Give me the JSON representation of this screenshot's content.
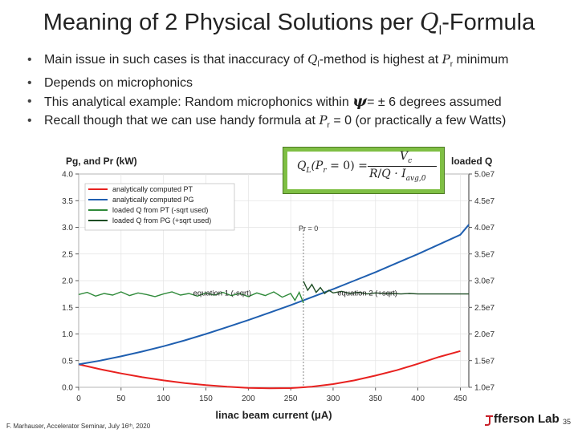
{
  "slide": {
    "title_pre": "Meaning of 2 Physical Solutions per ",
    "title_q": "Q",
    "title_sub": "l",
    "title_post": "-Formula",
    "bullets": {
      "b1_pre": "Main issue in such cases is that inaccuracy of ",
      "b1_q": "Q",
      "b1_sub": "l",
      "b1_mid": "-method is highest at ",
      "b1_p": "P",
      "b1_psub": "r",
      "b1_post": " minimum",
      "b2": "Depends on microphonics",
      "b3_pre": "This analytical example: Random microphonics within ",
      "b3_psi": "ψ",
      "b3_post": "= ± 6 degrees assumed",
      "b4_pre": "Recall though that we can use handy formula at ",
      "b4_p": "P",
      "b4_psub": "r",
      "b4_post": " = 0 (or practically a few Watts)"
    },
    "footer": "F. Marhauser, Accelerator Seminar, July 16ᵗʰ, 2020",
    "logo": "fferson Lab",
    "page": "35"
  },
  "formula": {
    "lhs": "Q",
    "lhs_sub": "L",
    "lhs_arg": "(P",
    "lhs_arg_sub": "r",
    "lhs_eq": " = 0) =",
    "num": "V",
    "num_sub": "c",
    "den_r": "R",
    "den_q": "Q",
    "den_i": "· I",
    "den_i_sub": "avg,0"
  },
  "chart_data": {
    "type": "line",
    "xlabel": "linac beam current (μA)",
    "ylabel": "Pg, and Pr (kW)",
    "y2label": "loaded Q",
    "x_ticks": [
      0,
      50,
      100,
      150,
      200,
      250,
      300,
      350,
      400,
      450
    ],
    "y_ticks": [
      0.0,
      0.5,
      1.0,
      1.5,
      2.0,
      2.5,
      3.0,
      3.5,
      4.0
    ],
    "y_tick_labels": [
      "0.0",
      "0.5",
      "1.0",
      "1.5",
      "2.0",
      "2.5",
      "3.0",
      "3.5",
      "4.0"
    ],
    "y2_ticks": [
      "1.0e7",
      "1.5e7",
      "2.0e7",
      "2.5e7",
      "3.0e7",
      "3.5e7",
      "4.0e7",
      "4.5e7",
      "5.0e7"
    ],
    "y2_values": [
      10000000,
      15000000,
      20000000,
      25000000,
      30000000,
      35000000,
      40000000,
      45000000,
      50000000
    ],
    "xlim": [
      0,
      460
    ],
    "ylim": [
      0,
      4.0
    ],
    "y2lim": [
      10000000,
      50000000
    ],
    "vline_x": 265,
    "vline_label": "Pr = 0",
    "legend_position": "top-left",
    "legend": [
      "analytically computed PT",
      "analytically computed PG",
      "loaded Q from PT (-sqrt used)",
      "loaded Q from PG (+sqrt used)"
    ],
    "annotations": [
      "equation 1 (-sqrt)",
      "equation 2 (+sqrt)"
    ],
    "series": [
      {
        "name": "analytically computed PT",
        "color": "#e8211f",
        "axis": "left",
        "x": [
          0,
          25,
          50,
          75,
          100,
          125,
          150,
          175,
          200,
          225,
          250,
          265,
          275,
          300,
          325,
          350,
          375,
          400,
          425,
          450
        ],
        "y": [
          0.43,
          0.34,
          0.26,
          0.19,
          0.13,
          0.08,
          0.04,
          0.01,
          -0.01,
          -0.02,
          -0.015,
          0.0,
          0.01,
          0.06,
          0.13,
          0.22,
          0.32,
          0.44,
          0.57,
          0.68
        ]
      },
      {
        "name": "analytically computed PG",
        "color": "#1f5fb0",
        "axis": "left",
        "x": [
          0,
          25,
          50,
          75,
          100,
          125,
          150,
          175,
          200,
          225,
          250,
          275,
          300,
          325,
          350,
          375,
          400,
          425,
          450,
          460
        ],
        "y": [
          0.43,
          0.5,
          0.58,
          0.67,
          0.77,
          0.88,
          1.0,
          1.13,
          1.26,
          1.4,
          1.54,
          1.69,
          1.84,
          2.0,
          2.16,
          2.33,
          2.5,
          2.68,
          2.86,
          3.05
        ]
      },
      {
        "name": "loaded Q from PT (-sqrt used)",
        "color": "#2f8a3a",
        "axis": "right",
        "x": [
          0,
          10,
          20,
          30,
          40,
          50,
          60,
          70,
          80,
          90,
          100,
          110,
          120,
          130,
          140,
          150,
          160,
          170,
          180,
          190,
          200,
          210,
          220,
          230,
          240,
          250,
          255,
          260,
          265
        ],
        "y": [
          27400000,
          27800000,
          27100000,
          27600000,
          27300000,
          27900000,
          27200000,
          27700000,
          27400000,
          27000000,
          27500000,
          27900000,
          27300000,
          27600000,
          27100000,
          27700000,
          27300000,
          27800000,
          27200000,
          27600000,
          27000000,
          27700000,
          27200000,
          27900000,
          26900000,
          27600000,
          26300000,
          27800000,
          25800000
        ]
      },
      {
        "name": "loaded Q from PG (+sqrt used)",
        "color": "#1e4d24",
        "axis": "right",
        "x": [
          265,
          270,
          275,
          280,
          285,
          290,
          295,
          300,
          310,
          320,
          330,
          340,
          350,
          360,
          370,
          380,
          390,
          400,
          410,
          420,
          430,
          440,
          450,
          460
        ],
        "y": [
          29900000,
          28200000,
          29300000,
          27800000,
          28700000,
          27600000,
          28200000,
          27700000,
          28000000,
          27600000,
          27800000,
          27500000,
          27700000,
          27600000,
          27600000,
          27500000,
          27600000,
          27500000,
          27500000,
          27500000,
          27500000,
          27500000,
          27500000,
          27500000
        ]
      }
    ]
  }
}
